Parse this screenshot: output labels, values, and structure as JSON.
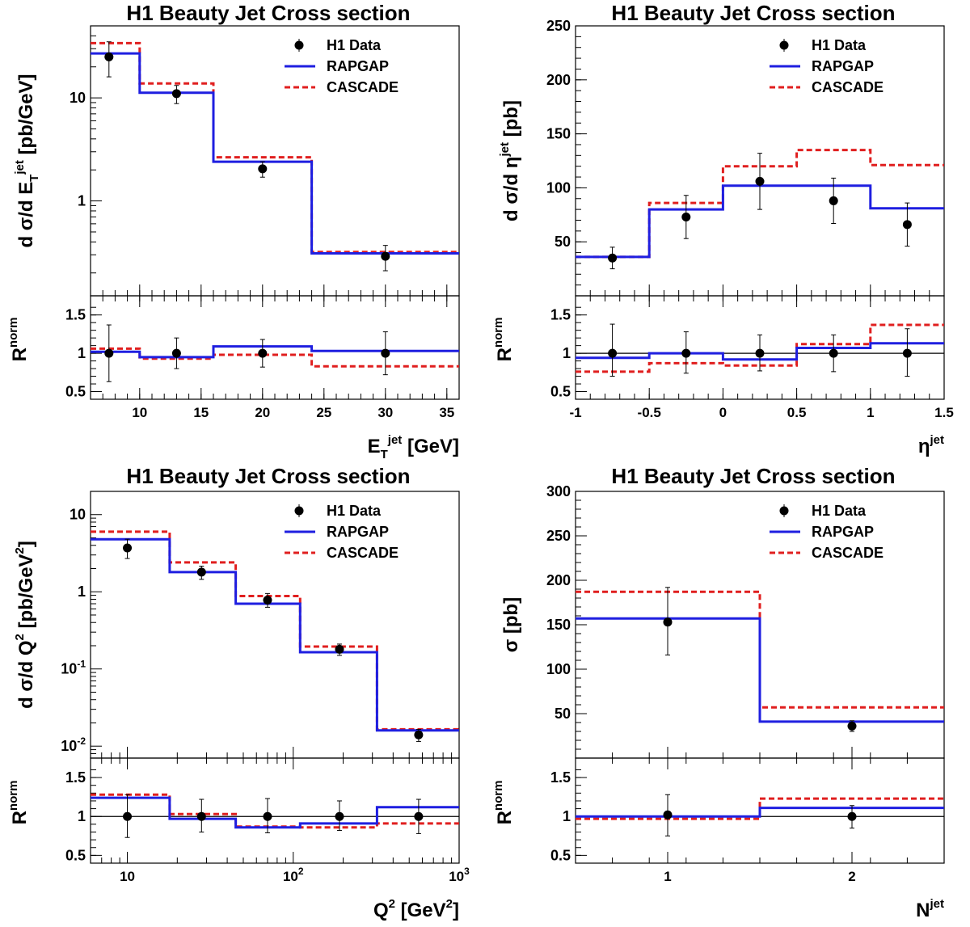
{
  "colors": {
    "data": "#000000",
    "rapgap": "#1f1fe0",
    "cascade": "#e01f1f"
  },
  "chart_data": [
    {
      "type": "line",
      "title": "H1 Beauty Jet Cross section",
      "ylabel_parts": [
        "d σ/d E",
        "T",
        "jet",
        "[pb/GeV]"
      ],
      "xlabel_parts": [
        "E",
        "T",
        "jet",
        "[GeV]"
      ],
      "ratio_label": [
        "R",
        "norm"
      ],
      "xlim": [
        6,
        36
      ],
      "ylim": [
        0.12,
        50
      ],
      "yscale": "log",
      "xticks": [
        {
          "v": 10,
          "label": "10"
        },
        {
          "v": 15,
          "label": "15"
        },
        {
          "v": 20,
          "label": "20"
        },
        {
          "v": 25,
          "label": "25"
        },
        {
          "v": 30,
          "label": "30"
        },
        {
          "v": 35,
          "label": "35"
        }
      ],
      "yticks": [
        {
          "v": 1,
          "label": "1"
        },
        {
          "v": 10,
          "label": "10"
        }
      ],
      "ratio_ylim": [
        0.4,
        1.75
      ],
      "ratio_yticks": [
        {
          "v": 0.5,
          "label": "0.5"
        },
        {
          "v": 1,
          "label": "1"
        },
        {
          "v": 1.5,
          "label": "1.5"
        }
      ],
      "ratio_refline": false,
      "bin_edges": [
        6,
        10,
        16,
        24,
        36
      ],
      "legend": {
        "data": "H1 Data",
        "rapgap": "RAPGAP",
        "cascade": "CASCADE"
      },
      "series": [
        {
          "name": "H1 Data",
          "x": [
            7.5,
            13,
            20,
            30
          ],
          "y": [
            25,
            11,
            2.05,
            0.29
          ],
          "err": [
            [
              16,
              35
            ],
            [
              8.8,
              13.2
            ],
            [
              1.7,
              2.4
            ],
            [
              0.21,
              0.37
            ]
          ]
        },
        {
          "name": "RAPGAP",
          "values": [
            27,
            11.2,
            2.4,
            0.31
          ]
        },
        {
          "name": "CASCADE",
          "values": [
            34,
            13.8,
            2.65,
            0.32
          ]
        }
      ],
      "ratio": {
        "data": {
          "x": [
            7.5,
            13,
            20,
            30
          ],
          "y": [
            1.0,
            1.0,
            1.0,
            1.0
          ],
          "err": [
            [
              0.63,
              1.37
            ],
            [
              0.8,
              1.2
            ],
            [
              0.82,
              1.18
            ],
            [
              0.72,
              1.28
            ]
          ]
        },
        "rapgap": [
          1.02,
          0.95,
          1.09,
          1.03
        ],
        "cascade": [
          1.06,
          0.93,
          0.98,
          0.83
        ]
      }
    },
    {
      "type": "line",
      "title": "H1 Beauty Jet Cross section",
      "ylabel_parts": [
        "d σ/d η",
        "",
        "jet",
        "[pb]"
      ],
      "xlabel_parts": [
        "η",
        "",
        "jet",
        ""
      ],
      "ratio_label": [
        "R",
        "norm"
      ],
      "xlim": [
        -1,
        1.5
      ],
      "ylim": [
        0,
        250
      ],
      "yscale": "linear",
      "xticks": [
        {
          "v": -1,
          "label": "-1"
        },
        {
          "v": -0.5,
          "label": "-0.5"
        },
        {
          "v": 0,
          "label": "0"
        },
        {
          "v": 0.5,
          "label": "0.5"
        },
        {
          "v": 1,
          "label": "1"
        },
        {
          "v": 1.5,
          "label": "1.5"
        }
      ],
      "yticks": [
        {
          "v": 50,
          "label": "50"
        },
        {
          "v": 100,
          "label": "100"
        },
        {
          "v": 150,
          "label": "150"
        },
        {
          "v": 200,
          "label": "200"
        },
        {
          "v": 250,
          "label": "250"
        }
      ],
      "ratio_ylim": [
        0.4,
        1.75
      ],
      "ratio_yticks": [
        {
          "v": 0.5,
          "label": "0.5"
        },
        {
          "v": 1,
          "label": "1"
        },
        {
          "v": 1.5,
          "label": "1.5"
        }
      ],
      "ratio_refline": true,
      "bin_edges": [
        -1,
        -0.5,
        0,
        0.5,
        1,
        1.5
      ],
      "legend": {
        "data": "H1 Data",
        "rapgap": "RAPGAP",
        "cascade": "CASCADE"
      },
      "series": [
        {
          "name": "H1 Data",
          "x": [
            -0.75,
            -0.25,
            0.25,
            0.75,
            1.25
          ],
          "y": [
            35,
            73,
            106,
            88,
            66
          ],
          "err": [
            [
              25,
              45
            ],
            [
              53,
              93
            ],
            [
              80,
              132
            ],
            [
              67,
              109
            ],
            [
              46,
              86
            ]
          ]
        },
        {
          "name": "RAPGAP",
          "values": [
            36,
            80,
            102,
            102,
            81
          ]
        },
        {
          "name": "CASCADE",
          "values": [
            36,
            86,
            120,
            135,
            121
          ]
        }
      ],
      "ratio": {
        "data": {
          "x": [
            -0.75,
            -0.25,
            0.25,
            0.75,
            1.25
          ],
          "y": [
            1.0,
            1.0,
            1.0,
            1.0,
            1.0
          ],
          "err": [
            [
              0.7,
              1.38
            ],
            [
              0.74,
              1.28
            ],
            [
              0.77,
              1.24
            ],
            [
              0.76,
              1.24
            ],
            [
              0.7,
              1.32
            ]
          ]
        },
        "rapgap": [
          0.94,
          1.0,
          0.92,
          1.07,
          1.13
        ],
        "cascade": [
          0.76,
          0.87,
          0.84,
          1.12,
          1.37
        ]
      }
    },
    {
      "type": "line",
      "title": "H1 Beauty Jet Cross section",
      "ylabel_parts": [
        "d σ/d Q",
        "",
        "2",
        "[pb/GeV",
        "2",
        "]"
      ],
      "xlabel_parts": [
        "Q",
        "",
        "2",
        "[GeV",
        "2",
        "]"
      ],
      "ratio_label": [
        "R",
        "norm"
      ],
      "xlim": [
        6,
        1000
      ],
      "xscale": "log",
      "ylim": [
        0.007,
        20
      ],
      "yscale": "log",
      "xticks": [
        {
          "v": 10,
          "label": "10",
          "sup": ""
        },
        {
          "v": 100,
          "label": "10",
          "sup": "2"
        },
        {
          "v": 1000,
          "label": "10",
          "sup": "3"
        }
      ],
      "yticks": [
        {
          "v": 0.01,
          "label": "10",
          "sup": "-2"
        },
        {
          "v": 0.1,
          "label": "10",
          "sup": "-1"
        },
        {
          "v": 1,
          "label": "1",
          "sup": ""
        },
        {
          "v": 10,
          "label": "10",
          "sup": ""
        }
      ],
      "ratio_ylim": [
        0.4,
        1.75
      ],
      "ratio_yticks": [
        {
          "v": 0.5,
          "label": "0.5"
        },
        {
          "v": 1,
          "label": "1"
        },
        {
          "v": 1.5,
          "label": "1.5"
        }
      ],
      "ratio_refline": true,
      "bin_edges": [
        6,
        18,
        45,
        110,
        320,
        1000
      ],
      "legend": {
        "data": "H1 Data",
        "rapgap": "RAPGAP",
        "cascade": "CASCADE"
      },
      "series": [
        {
          "name": "H1 Data",
          "x": [
            10,
            28,
            70,
            190,
            570
          ],
          "y": [
            3.7,
            1.8,
            0.78,
            0.18,
            0.014
          ],
          "err": [
            [
              2.7,
              4.8
            ],
            [
              1.45,
              2.15
            ],
            [
              0.63,
              0.95
            ],
            [
              0.15,
              0.21
            ],
            [
              0.0115,
              0.0165
            ]
          ]
        },
        {
          "name": "RAPGAP",
          "values": [
            4.8,
            1.8,
            0.7,
            0.165,
            0.016
          ]
        },
        {
          "name": "CASCADE",
          "values": [
            6.0,
            2.4,
            0.88,
            0.195,
            0.0165
          ]
        }
      ],
      "ratio": {
        "data": {
          "x": [
            10,
            28,
            70,
            190,
            570
          ],
          "y": [
            1.0,
            1.0,
            1.0,
            1.0,
            1.0
          ],
          "err": [
            [
              0.73,
              1.28
            ],
            [
              0.8,
              1.22
            ],
            [
              0.79,
              1.23
            ],
            [
              0.82,
              1.2
            ],
            [
              0.78,
              1.22
            ]
          ]
        },
        "rapgap": [
          1.24,
          0.97,
          0.86,
          0.91,
          1.12
        ],
        "cascade": [
          1.28,
          1.03,
          0.87,
          0.86,
          0.91
        ]
      }
    },
    {
      "type": "line",
      "title": "H1 Beauty Jet Cross section",
      "ylabel_parts": [
        "σ",
        "",
        "",
        "[pb]"
      ],
      "xlabel_parts": [
        "N",
        "",
        "jet",
        ""
      ],
      "ratio_label": [
        "R",
        "norm"
      ],
      "xlim": [
        0.5,
        2.5
      ],
      "ylim": [
        0,
        300
      ],
      "yscale": "linear",
      "xticks": [
        {
          "v": 1,
          "label": "1"
        },
        {
          "v": 2,
          "label": "2"
        }
      ],
      "yticks": [
        {
          "v": 50,
          "label": "50"
        },
        {
          "v": 100,
          "label": "100"
        },
        {
          "v": 150,
          "label": "150"
        },
        {
          "v": 200,
          "label": "200"
        },
        {
          "v": 250,
          "label": "250"
        },
        {
          "v": 300,
          "label": "300"
        }
      ],
      "ratio_ylim": [
        0.4,
        1.75
      ],
      "ratio_yticks": [
        {
          "v": 0.5,
          "label": "0.5"
        },
        {
          "v": 1,
          "label": "1"
        },
        {
          "v": 1.5,
          "label": "1.5"
        }
      ],
      "ratio_refline": true,
      "bin_edges": [
        0.5,
        1.5,
        2.5
      ],
      "legend": {
        "data": "H1 Data",
        "rapgap": "RAPGAP",
        "cascade": "CASCADE"
      },
      "series": [
        {
          "name": "H1 Data",
          "x": [
            1,
            2
          ],
          "y": [
            153,
            36
          ],
          "err": [
            [
              116,
              192
            ],
            [
              30,
              42
            ]
          ]
        },
        {
          "name": "RAPGAP",
          "values": [
            157,
            41
          ]
        },
        {
          "name": "CASCADE",
          "values": [
            187,
            57
          ]
        }
      ],
      "ratio": {
        "data": {
          "x": [
            1,
            2
          ],
          "y": [
            1.02,
            1.0
          ],
          "err": [
            [
              0.75,
              1.28
            ],
            [
              0.85,
              1.14
            ]
          ]
        },
        "rapgap": [
          1.0,
          1.11
        ],
        "cascade": [
          0.97,
          1.23
        ]
      }
    }
  ]
}
